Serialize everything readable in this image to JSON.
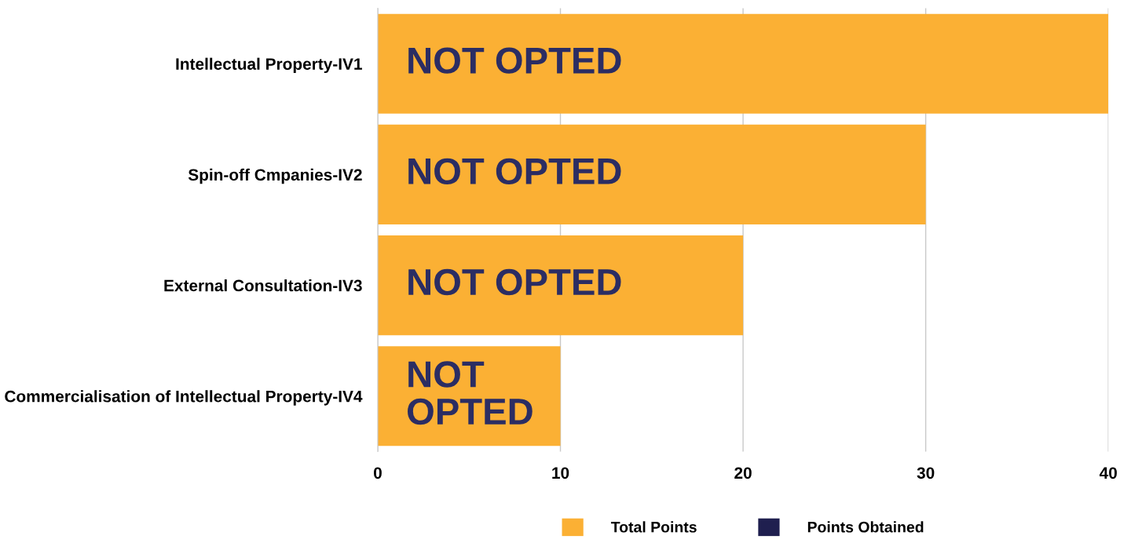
{
  "chart_data": {
    "type": "bar",
    "orientation": "horizontal",
    "categories": [
      "Intellectual Property-IV1",
      "Spin-off Cmpanies-IV2",
      "External Consultation-IV3",
      "Commercialisation of Intellectual Property-IV4"
    ],
    "series": [
      {
        "name": "Total Points",
        "color": "#fbb034",
        "values": [
          40,
          30,
          20,
          10
        ]
      },
      {
        "name": "Points Obtained",
        "color": "#1f1f4f",
        "values": [
          null,
          null,
          null,
          null
        ]
      }
    ],
    "xlim": [
      0,
      40
    ],
    "xticks": [
      0,
      10,
      20,
      30,
      40
    ],
    "grid": "x",
    "legend": "bottom",
    "annotations": [
      "NOT OPTED",
      "NOT OPTED",
      "NOT OPTED",
      "NOT\nOPTED"
    ]
  }
}
